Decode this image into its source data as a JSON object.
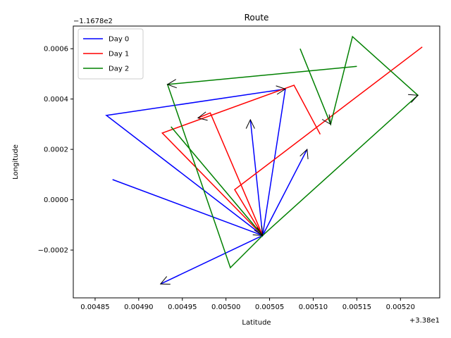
{
  "chart_data": {
    "type": "line",
    "title": "Route",
    "xlabel": "Latitude",
    "ylabel": "Longitude",
    "x_offset_label": "+3.38e1",
    "y_offset_label": "−1.1678e2",
    "xlim": [
      0.004825,
      0.005245
    ],
    "ylim": [
      -0.00039,
      0.00069
    ],
    "x_ticks": [
      {
        "value": 0.00485,
        "label": "0.00485"
      },
      {
        "value": 0.0049,
        "label": "0.00490"
      },
      {
        "value": 0.00495,
        "label": "0.00495"
      },
      {
        "value": 0.005,
        "label": "0.00500"
      },
      {
        "value": 0.00505,
        "label": "0.00505"
      },
      {
        "value": 0.0051,
        "label": "0.00510"
      },
      {
        "value": 0.00515,
        "label": "0.00515"
      },
      {
        "value": 0.0052,
        "label": "0.00520"
      }
    ],
    "y_ticks": [
      {
        "value": -0.0002,
        "label": "−0.0002"
      },
      {
        "value": 0.0,
        "label": "0.0000"
      },
      {
        "value": 0.0002,
        "label": "0.0002"
      },
      {
        "value": 0.0004,
        "label": "0.0004"
      },
      {
        "value": 0.0006,
        "label": "0.0006"
      }
    ],
    "legend_position": "top-left",
    "grid": false,
    "series": [
      {
        "name": "Day 0",
        "color": "#0000ff",
        "points": [
          [
            0.00487,
            8e-05
          ],
          [
            0.005042,
            -0.000142
          ],
          [
            0.004863,
            0.000335
          ],
          [
            0.005068,
            0.00044
          ],
          [
            0.005042,
            -0.000142
          ],
          [
            0.005028,
            0.000318
          ],
          [
            0.005042,
            -0.000142
          ],
          [
            0.005093,
            0.0002
          ],
          [
            0.005042,
            -0.000142
          ],
          [
            0.004925,
            -0.000335
          ]
        ]
      },
      {
        "name": "Day 1",
        "color": "#ff0000",
        "points": [
          [
            0.005225,
            0.000607
          ],
          [
            0.00501,
            4e-05
          ],
          [
            0.005042,
            -0.000142
          ],
          [
            0.004927,
            0.000265
          ],
          [
            0.005078,
            0.000455
          ],
          [
            0.005108,
            0.00026
          ]
        ]
      },
      {
        "name": "Day 2",
        "color": "#008000",
        "points": [
          [
            0.005085,
            0.0006
          ],
          [
            0.00512,
            0.0003
          ],
          [
            0.005145,
            0.000648
          ],
          [
            0.00522,
            0.000415
          ],
          [
            0.005042,
            -0.000142
          ],
          [
            0.004937,
            0.00029
          ]
        ]
      },
      {
        "name": "",
        "color": "#ff0000",
        "points": [
          [
            0.005042,
            -0.000142
          ],
          [
            0.004982,
            0.000345
          ],
          [
            0.004968,
            0.000325
          ]
        ]
      },
      {
        "name": "",
        "color": "#008000",
        "points": [
          [
            0.005042,
            -0.000142
          ],
          [
            0.005005,
            -0.00027
          ],
          [
            0.004933,
            0.000458
          ],
          [
            0.00515,
            0.00053
          ]
        ]
      }
    ],
    "arrows": [
      {
        "color": "#000000",
        "from": [
          0.005028,
          0.0002
        ],
        "to": [
          0.005028,
          0.000318
        ]
      },
      {
        "color": "#000000",
        "from": [
          0.00508,
          8e-05
        ],
        "to": [
          0.005093,
          0.0002
        ]
      },
      {
        "color": "#000000",
        "from": [
          0.00501,
          4e-05
        ],
        "to": [
          0.005042,
          -0.000142
        ]
      },
      {
        "color": "#000000",
        "from": [
          0.00499,
          -4e-05
        ],
        "to": [
          0.005042,
          -0.000142
        ]
      },
      {
        "color": "#000000",
        "from": [
          0.004975,
          0.00033
        ],
        "to": [
          0.004968,
          0.000325
        ]
      },
      {
        "color": "#000000",
        "from": [
          0.005,
          0.00041
        ],
        "to": [
          0.005068,
          0.00044
        ]
      },
      {
        "color": "#000000",
        "from": [
          0.005,
          0.00048
        ],
        "to": [
          0.004933,
          0.000458
        ]
      },
      {
        "color": "#000000",
        "from": [
          0.00515,
          0.00032
        ],
        "to": [
          0.00522,
          0.000415
        ]
      },
      {
        "color": "#000000",
        "from": [
          0.0051,
          0.0004
        ],
        "to": [
          0.00512,
          0.0003
        ]
      },
      {
        "color": "#000000",
        "from": [
          0.004985,
          -0.00024
        ],
        "to": [
          0.004925,
          -0.000335
        ]
      }
    ]
  }
}
